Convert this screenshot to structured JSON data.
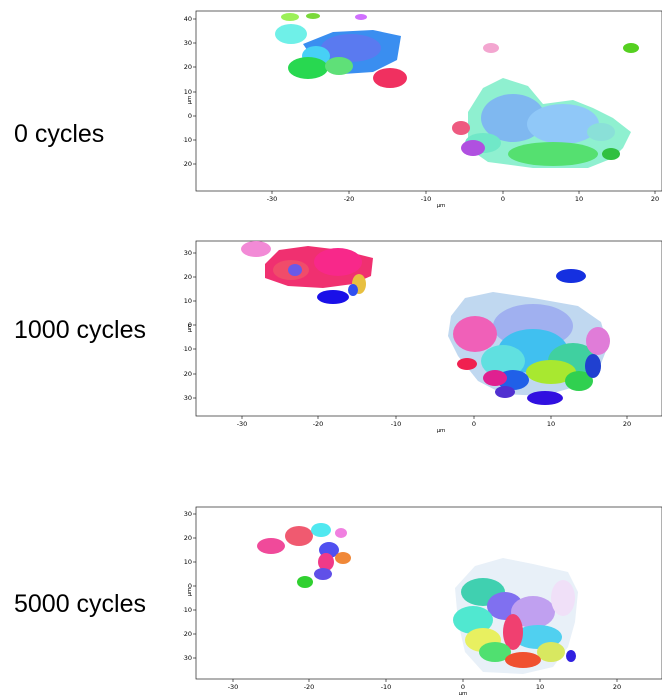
{
  "panels": [
    {
      "label": "0 cycles",
      "x_unit": "µm",
      "y_unit": "µm",
      "x_ticks": [
        "-30",
        "-20",
        "-10",
        "0",
        "10",
        "20"
      ],
      "y_ticks": [
        "40",
        "30",
        "20",
        "10",
        "0",
        "-10",
        "-20"
      ]
    },
    {
      "label": "1000 cycles",
      "x_unit": "µm",
      "y_unit": "µm",
      "x_ticks": [
        "-30",
        "-20",
        "-10",
        "0",
        "10",
        "20"
      ],
      "y_ticks": [
        "30",
        "20",
        "10",
        "0",
        "-10",
        "-20",
        "-30"
      ]
    },
    {
      "label": "5000 cycles",
      "x_unit": "µm",
      "y_unit": "µm",
      "x_ticks": [
        "-30",
        "-20",
        "-10",
        "0",
        "10",
        "20"
      ],
      "y_ticks": [
        "30",
        "20",
        "10",
        "0",
        "-10",
        "-20",
        "-30"
      ]
    }
  ]
}
